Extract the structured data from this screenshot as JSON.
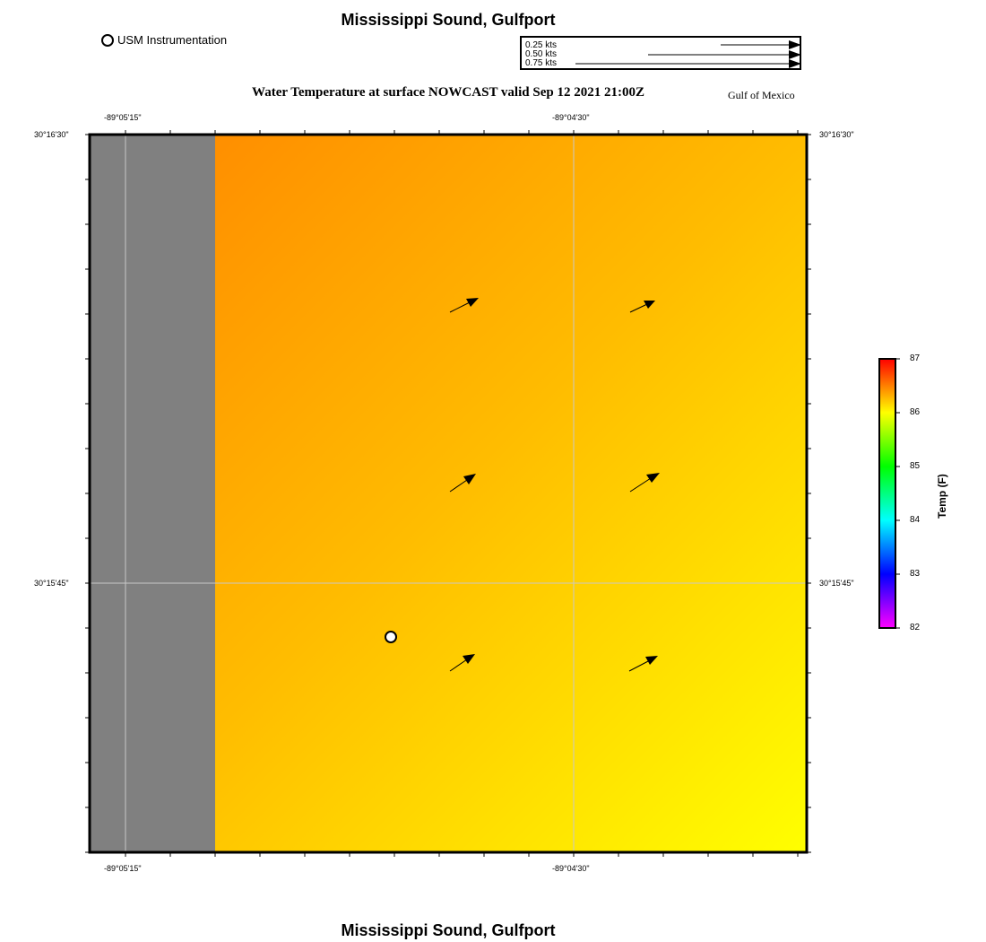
{
  "header": {
    "title": "Mississippi Sound, Gulfport",
    "subtitle": "Water Temperature at surface NOWCAST  valid Sep 12 2021 21:00Z",
    "region_label": "Gulf of Mexico"
  },
  "footer": {
    "title": "Mississippi Sound, Gulfport"
  },
  "legend": {
    "usm_label": "USM Instrumentation",
    "speed_scale": [
      "0.25 kts",
      "0.50 kts",
      "0.75 kts"
    ]
  },
  "axes": {
    "x_ticks": [
      "-89°05'15\"",
      "-89°04'30\""
    ],
    "y_ticks": [
      "30°16'30\"",
      "30°15'45\""
    ]
  },
  "colorbar": {
    "title": "Temp (F)",
    "ticks": [
      "87",
      "86",
      "85",
      "84",
      "83",
      "82"
    ],
    "min": 82,
    "max": 87
  },
  "colors": {
    "land": "#808080",
    "water_warm": "#ff8800",
    "water_cool": "#ffff00"
  }
}
